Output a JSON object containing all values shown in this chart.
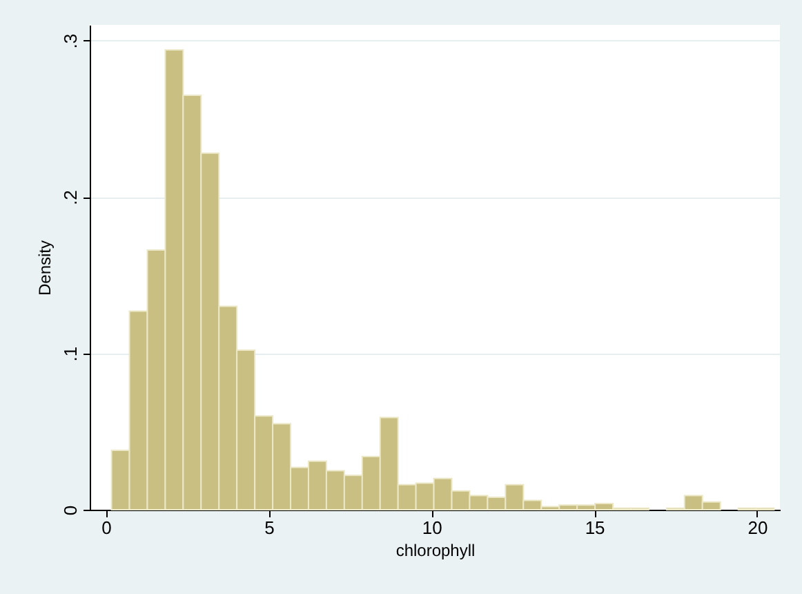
{
  "chart_data": {
    "type": "histogram",
    "xlabel": "chlorophyll",
    "ylabel": "Density",
    "color": "#c9bf82",
    "bins": [
      0.17,
      0.72,
      1.27,
      1.82,
      2.37,
      2.92,
      3.47,
      4.02,
      4.57,
      5.12,
      5.67,
      6.22,
      6.77,
      7.32,
      7.87,
      8.42,
      8.97,
      9.52,
      10.07,
      10.62,
      11.17,
      11.72,
      12.27,
      12.82,
      13.37,
      13.92,
      14.47,
      15.02,
      15.57,
      16.12,
      16.67,
      17.22,
      17.77,
      18.32,
      18.87,
      19.42,
      19.97,
      20.52
    ],
    "values": [
      0.038,
      0.127,
      0.166,
      0.294,
      0.265,
      0.228,
      0.13,
      0.102,
      0.06,
      0.055,
      0.027,
      0.031,
      0.025,
      0.022,
      0.034,
      0.059,
      0.016,
      0.017,
      0.02,
      0.012,
      0.009,
      0.008,
      0.016,
      0.006,
      0.002,
      0.003,
      0.003,
      0.004,
      0.001,
      0.001,
      0,
      0.001,
      0.009,
      0.005,
      0,
      0.001,
      0.001
    ],
    "xlim": [
      -0.5,
      20.7
    ],
    "ylim": [
      0,
      0.31
    ],
    "xticks": [
      0,
      5,
      10,
      15,
      20
    ],
    "yticks": [
      0,
      {
        "value": 0.1,
        "label": ".1"
      },
      {
        "value": 0.2,
        "label": ".2"
      },
      {
        "value": 0.3,
        "label": ".3"
      }
    ],
    "grid": "y"
  }
}
